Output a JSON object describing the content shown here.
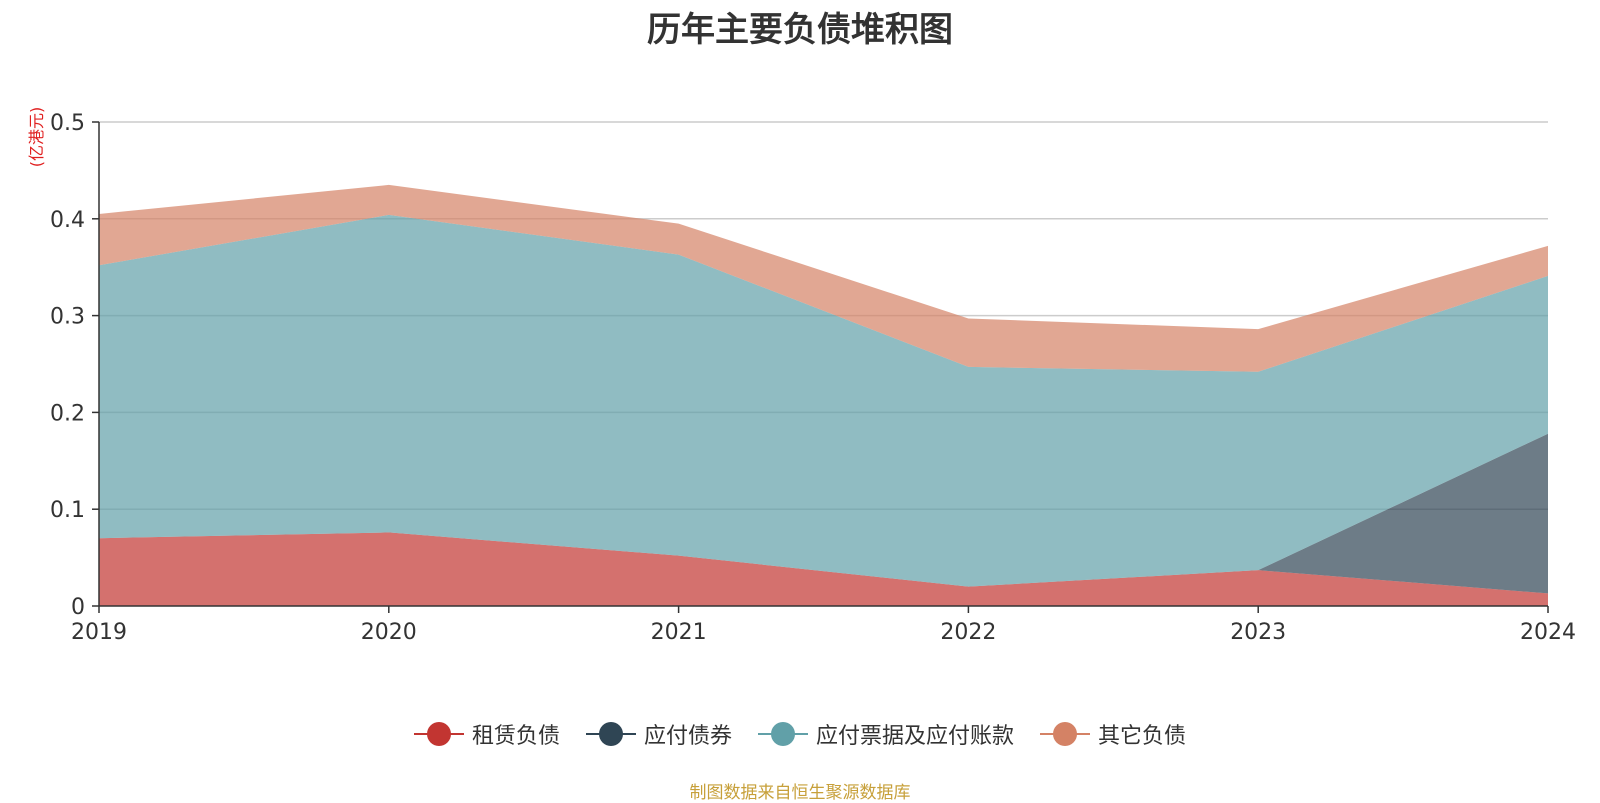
{
  "chart_data": {
    "type": "area",
    "stacked": true,
    "title": "历年主要负债堆积图",
    "ylabel": "(亿港元)",
    "x": [
      "2019",
      "2020",
      "2021",
      "2022",
      "2023",
      "2024"
    ],
    "ylim": [
      0,
      0.5
    ],
    "yticks": [
      "0",
      "0.1",
      "0.2",
      "0.3",
      "0.4",
      "0.5"
    ],
    "grid": true,
    "legend_position": "bottom",
    "series": [
      {
        "name": "租赁负债",
        "color": "#c23531",
        "values": [
          0.07,
          0.076,
          0.052,
          0.02,
          0.037,
          0.013
        ]
      },
      {
        "name": "应付债券",
        "color": "#2f4554",
        "values": [
          0,
          0,
          0,
          0,
          0,
          0.165
        ]
      },
      {
        "name": "应付票据及应付账款",
        "color": "#61a0a8",
        "values": [
          0.282,
          0.328,
          0.311,
          0.227,
          0.205,
          0.163
        ]
      },
      {
        "name": "其它负债",
        "color": "#d48265",
        "values": [
          0.053,
          0.031,
          0.032,
          0.05,
          0.044,
          0.031
        ]
      }
    ]
  },
  "footer": {
    "source": "制图数据来自恒生聚源数据库",
    "color": "#c7a03a"
  },
  "axis_label_color": "#e02020"
}
